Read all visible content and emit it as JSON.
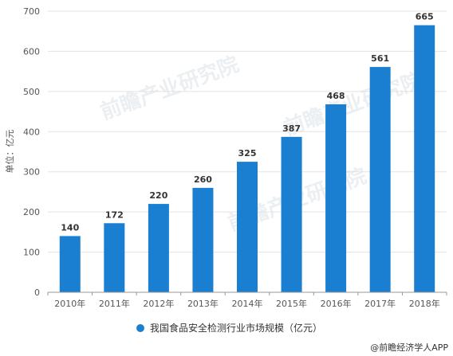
{
  "chart_data": {
    "type": "bar",
    "categories": [
      "2010年",
      "2011年",
      "2012年",
      "2013年",
      "2014年",
      "2015年",
      "2016年",
      "2017年",
      "2018年"
    ],
    "values": [
      140,
      172,
      220,
      260,
      325,
      387,
      468,
      561,
      665
    ],
    "ylabel": "单位：亿元",
    "ylim": [
      0,
      700
    ],
    "yticks": [
      0,
      100,
      200,
      300,
      400,
      500,
      600,
      700
    ],
    "legend": "我国食品安全检测行业市场规模（亿元）",
    "legend_position": "bottom",
    "grid": true,
    "bar_color": "#1a7fd0"
  },
  "credit": "@前瞻经济学人APP",
  "watermark": "前瞻产业研究院"
}
